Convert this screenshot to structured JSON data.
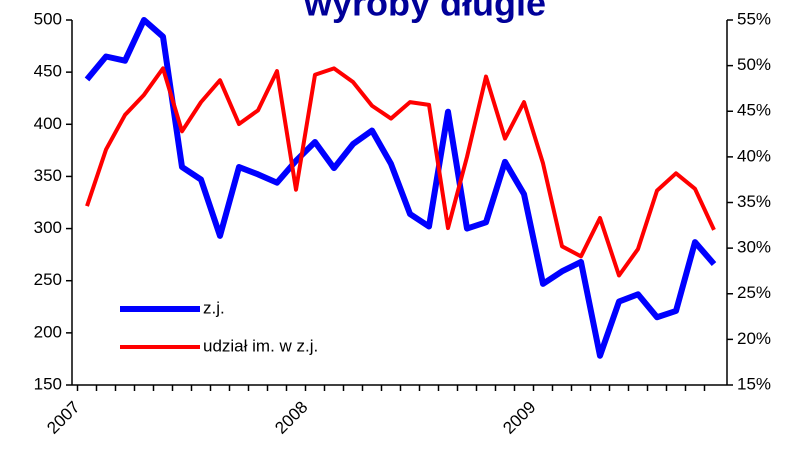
{
  "chart_data": {
    "type": "line",
    "title": "wyroby długie",
    "categories": [
      "2007",
      null,
      null,
      null,
      null,
      null,
      null,
      null,
      null,
      null,
      null,
      null,
      "2008",
      null,
      null,
      null,
      null,
      null,
      null,
      null,
      null,
      null,
      null,
      null,
      "2009",
      null,
      null,
      null,
      null,
      null,
      null,
      null,
      null,
      null
    ],
    "series": [
      {
        "name": "z.j.",
        "color": "#0000ff",
        "values": [
          443,
          465,
          461,
          500,
          484,
          359,
          347,
          293,
          359,
          352,
          344,
          365,
          383,
          358,
          381,
          394,
          362,
          314,
          302,
          412,
          300,
          306,
          364,
          333,
          247,
          259,
          268,
          178,
          230,
          237,
          215,
          221,
          287,
          266
        ]
      },
      {
        "name": "udział im. w z.j.",
        "color": "#ff0000",
        "axis": "y2",
        "values": [
          34.6,
          40.8,
          44.6,
          46.8,
          49.7,
          42.8,
          46,
          48.4,
          43.6,
          45.1,
          49.4,
          36.4,
          49,
          49.7,
          48.2,
          45.6,
          44.2,
          46,
          45.7,
          32.2,
          40,
          48.8,
          42,
          46,
          39.3,
          30.2,
          29.1,
          33.3,
          27,
          29.9,
          36.3,
          38.2,
          36.5,
          32
        ]
      }
    ],
    "ylim": [
      150,
      500
    ],
    "yticks": [
      150,
      200,
      250,
      300,
      350,
      400,
      450,
      500
    ],
    "y2lim": [
      15,
      55
    ],
    "y2ticks": [
      {
        "value": 15,
        "label": "15%"
      },
      {
        "value": 20,
        "label": "20%"
      },
      {
        "value": 25,
        "label": "25%"
      },
      {
        "value": 30,
        "label": "30%"
      },
      {
        "value": 35,
        "label": "35%"
      },
      {
        "value": 40,
        "label": "40%"
      },
      {
        "value": 45,
        "label": "45%"
      },
      {
        "value": 50,
        "label": "50%"
      },
      {
        "value": 55,
        "label": "55%"
      }
    ]
  }
}
